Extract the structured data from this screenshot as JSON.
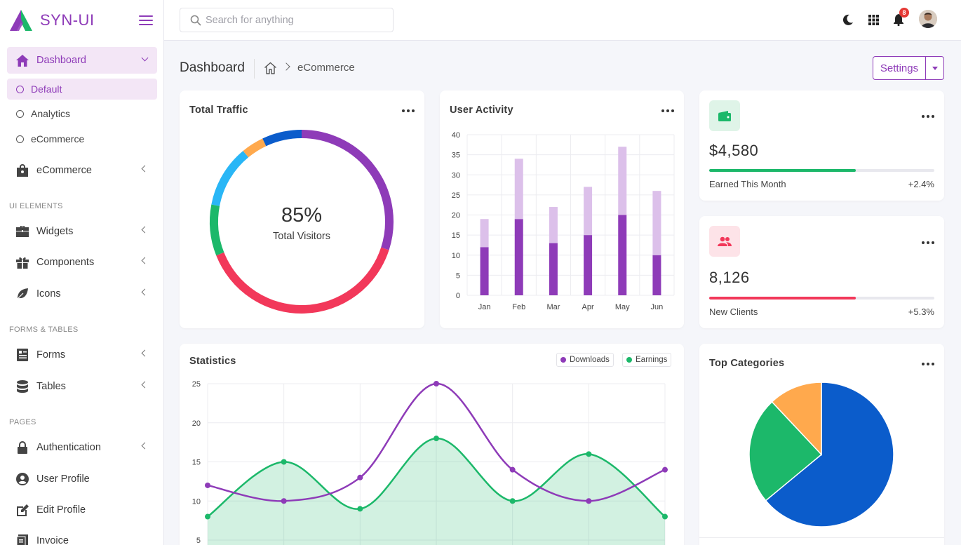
{
  "brand": {
    "name": "SYN-UI"
  },
  "sidebar": {
    "dashboard": {
      "label": "Dashboard",
      "icon": "home-icon"
    },
    "sub": [
      {
        "label": "Default"
      },
      {
        "label": "Analytics"
      },
      {
        "label": "eCommerce"
      }
    ],
    "ecommerce": {
      "label": "eCommerce",
      "icon": "shopping-bag-icon"
    },
    "sections": {
      "ui": "UI ELEMENTS",
      "forms": "FORMS & TABLES",
      "pages": "PAGES"
    },
    "items": {
      "widgets": "Widgets",
      "components": "Components",
      "icons": "Icons",
      "forms": "Forms",
      "tables": "Tables",
      "authentication": "Authentication",
      "user_profile": "User Profile",
      "edit_profile": "Edit Profile",
      "invoice": "Invoice"
    }
  },
  "topbar": {
    "search_placeholder": "Search for anything",
    "notification_count": "8"
  },
  "header": {
    "title": "Dashboard",
    "breadcrumb_current": "eCommerce",
    "settings_label": "Settings"
  },
  "traffic": {
    "title": "Total Traffic",
    "percent": "85%",
    "label": "Total Visitors"
  },
  "activity": {
    "title": "User Activity"
  },
  "earned": {
    "value": "$4,580",
    "label": "Earned This Month",
    "change": "+2.4%",
    "progress": 0.65,
    "color": "#1cb86a"
  },
  "clients": {
    "value": "8,126",
    "label": "New Clients",
    "change": "+5.3%",
    "progress": 0.65,
    "color": "#f2385a"
  },
  "statistics": {
    "title": "Statistics",
    "legend": [
      "Downloads",
      "Earnings"
    ]
  },
  "categories": {
    "title": "Top Categories"
  },
  "chart_data": [
    {
      "type": "pie",
      "variant": "donut",
      "title": "Total Traffic",
      "center_text": "85%",
      "center_label": "Total Visitors",
      "slices": [
        {
          "value": 30,
          "color": "#8e3bb8"
        },
        {
          "value": 39,
          "color": "#f2385a"
        },
        {
          "value": 9,
          "color": "#1cb86a"
        },
        {
          "value": 11,
          "color": "#29b6f6"
        },
        {
          "value": 4,
          "color": "#ffa94d"
        },
        {
          "value": 7,
          "color": "#0b5ccb"
        }
      ]
    },
    {
      "type": "bar",
      "stacked": true,
      "title": "User Activity",
      "categories": [
        "Jan",
        "Feb",
        "Mar",
        "Apr",
        "May",
        "Jun"
      ],
      "ylim": [
        0,
        40
      ],
      "yticks": [
        0,
        5,
        10,
        15,
        20,
        25,
        30,
        35,
        40
      ],
      "series": [
        {
          "values": [
            12,
            19,
            13,
            15,
            20,
            10
          ],
          "color": "#8e3bb8"
        },
        {
          "values": [
            7,
            15,
            9,
            12,
            17,
            16
          ],
          "color": "#dcc0ea"
        }
      ]
    },
    {
      "type": "line",
      "title": "Statistics",
      "ylim": [
        5,
        25
      ],
      "yticks": [
        5,
        10,
        15,
        20,
        25
      ],
      "x": [
        0,
        1,
        2,
        3,
        4,
        5,
        6
      ],
      "series": [
        {
          "name": "Downloads",
          "values": [
            12,
            10,
            13,
            25,
            14,
            10,
            14
          ],
          "color": "#8e3bb8"
        },
        {
          "name": "Earnings",
          "values": [
            8,
            15,
            9,
            18,
            10,
            16,
            8
          ],
          "color": "#1cb86a",
          "fill": true
        }
      ]
    },
    {
      "type": "pie",
      "title": "Top Categories",
      "slices": [
        {
          "value": 64,
          "color": "#0b5ccb"
        },
        {
          "value": 24,
          "color": "#1cb86a"
        },
        {
          "value": 12,
          "color": "#ffa94d"
        }
      ]
    }
  ]
}
